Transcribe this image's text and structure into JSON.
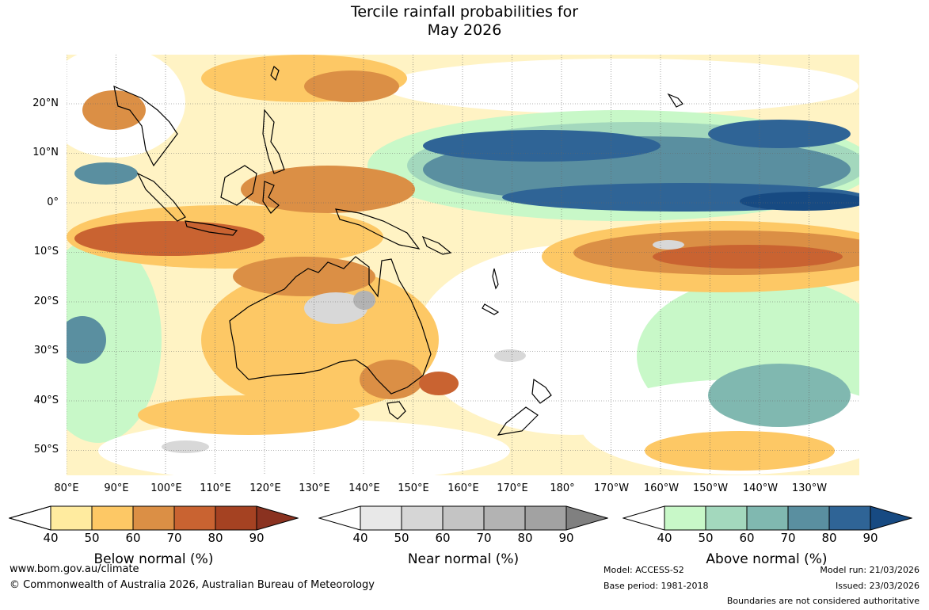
{
  "title_line1": "Tercile rainfall probabilities for",
  "title_line2": "May 2026",
  "map": {
    "lat_labels": [
      "20°N",
      "10°N",
      "0°",
      "10°S",
      "20°S",
      "30°S",
      "40°S",
      "50°S"
    ],
    "lon_labels": [
      "80°E",
      "90°E",
      "100°E",
      "110°E",
      "120°E",
      "130°E",
      "140°E",
      "150°E",
      "160°E",
      "170°E",
      "180°",
      "170°W",
      "160°W",
      "150°W",
      "140°W",
      "130°W"
    ],
    "region_colors": {
      "below_normal": "#d38a44",
      "near_normal": "#d8d8d8",
      "above_normal": "#2f6496"
    }
  },
  "colorbars": [
    {
      "title": "Below normal (%)",
      "ticks": [
        "40",
        "50",
        "60",
        "70",
        "80",
        "90"
      ],
      "colors": [
        "#ffffff",
        "#ffeb9f",
        "#fdc865",
        "#db8f45",
        "#c96331",
        "#a54222",
        "#8a3220"
      ]
    },
    {
      "title": "Near normal (%)",
      "ticks": [
        "40",
        "50",
        "60",
        "70",
        "80",
        "90"
      ],
      "colors": [
        "#ffffff",
        "#e8e8e8",
        "#d6d6d6",
        "#c4c4c4",
        "#b3b3b3",
        "#a2a2a2",
        "#808080"
      ]
    },
    {
      "title": "Above normal (%)",
      "ticks": [
        "40",
        "50",
        "60",
        "70",
        "80",
        "90"
      ],
      "colors": [
        "#ffffff",
        "#c8f8c8",
        "#a3d8bd",
        "#80b8b0",
        "#5a8fa0",
        "#2f6496",
        "#174a82"
      ]
    }
  ],
  "footer": {
    "website": "www.bom.gov.au/climate",
    "copyright": "© Commonwealth of Australia 2026, Australian Bureau of Meteorology",
    "model": "Model: ACCESS-S2",
    "base_period": "Base period: 1981-2018",
    "model_run": "Model run: 21/03/2026",
    "issued": "Issued: 23/03/2026",
    "boundaries_note": "Boundaries are not considered authoritative"
  }
}
